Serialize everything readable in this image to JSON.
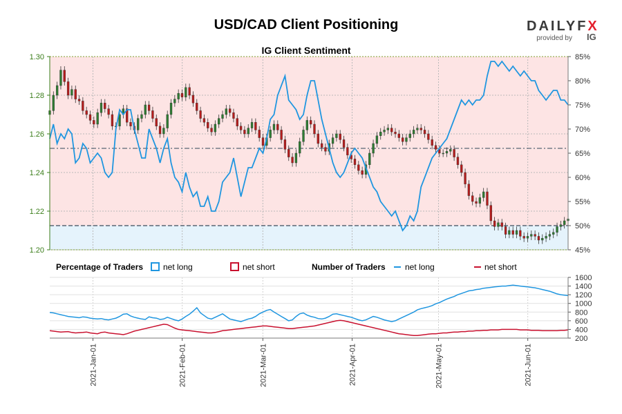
{
  "title": "USD/CAD Client Positioning",
  "logo": {
    "text": "DAILYFX",
    "provided_by": "provided by",
    "brand": "IG",
    "accent": "#e4202d"
  },
  "colors": {
    "net_long": "#1f96e0",
    "net_short": "#c8102e",
    "bull_candle": "#2e7d32",
    "bear_candle": "#b71c1c",
    "short_zone": "#fde4e4",
    "long_zone": "#e5f3fc",
    "left_axis": "#3a7d1a"
  },
  "legend": {
    "pct_label": "Percentage of Traders",
    "num_label": "Number of Traders",
    "net_long": "net long",
    "net_short": "net short"
  },
  "chart_data": [
    {
      "type": "line",
      "subtitle": "IG Client Sentiment",
      "x_dates": [
        "2021-01-01",
        "2021-02-01",
        "2021-03-01",
        "2021-04-01",
        "2021-05-01",
        "2021-06-01"
      ],
      "x_tick_labels": [
        "2021-Jan-01",
        "2021-Feb-01",
        "2021-Mar-01",
        "2021-Apr-01",
        "2021-May-01",
        "2021-Jun-01"
      ],
      "xlim": [
        "2020-12-17",
        "2021-06-15"
      ],
      "price_axis": {
        "ticks": [
          "1.20",
          "1.22",
          "1.24",
          "1.26",
          "1.28",
          "1.30"
        ],
        "ylim": [
          1.2,
          1.3
        ]
      },
      "pct_axis": {
        "ticks": [
          "45%",
          "50%",
          "55%",
          "60%",
          "65%",
          "70%",
          "75%",
          "80%",
          "85%"
        ],
        "ylim": [
          45,
          85
        ]
      },
      "reference_lines": [
        {
          "axis": "percent",
          "value": 50
        },
        {
          "axis": "percent",
          "value": 66
        }
      ],
      "series": [
        {
          "name": "net long",
          "axis": "percent",
          "start": "2020-12-17",
          "end": "2021-06-15",
          "values": [
            68,
            71,
            67,
            69,
            68,
            70,
            69,
            63,
            64,
            67,
            66,
            63,
            64,
            65,
            64,
            61,
            60,
            61,
            70,
            74,
            73,
            74,
            74,
            70,
            67,
            64,
            64,
            70,
            68,
            66,
            63,
            66,
            68,
            63,
            60,
            59,
            57,
            61,
            58,
            56,
            57,
            54,
            54,
            56,
            53,
            53,
            55,
            59,
            60,
            61,
            64,
            60,
            56,
            59,
            62,
            62,
            64,
            66,
            65,
            68,
            72,
            73,
            77,
            79,
            81,
            76,
            75,
            74,
            72,
            73,
            77,
            80,
            80,
            76,
            72,
            69,
            66,
            63,
            61,
            60,
            61,
            63,
            65,
            66,
            65,
            64,
            62,
            60,
            58,
            57,
            55,
            54,
            53,
            52,
            53,
            51,
            49,
            50,
            52,
            51,
            53,
            58,
            60,
            62,
            64,
            65,
            66,
            67,
            68,
            70,
            72,
            74,
            76,
            75,
            76,
            75,
            76,
            76,
            77,
            81,
            84,
            84,
            83,
            84,
            83,
            82,
            83,
            82,
            81,
            82,
            81,
            80,
            80,
            78,
            77,
            76,
            77,
            78,
            78,
            76,
            76,
            75
          ]
        },
        {
          "name": "net long traders",
          "axis": "traders",
          "start": "2020-12-17",
          "end": "2021-06-15",
          "values": [
            790,
            780,
            760,
            740,
            720,
            700,
            690,
            680,
            670,
            690,
            680,
            660,
            650,
            640,
            650,
            630,
            620,
            640,
            660,
            700,
            750,
            760,
            710,
            680,
            660,
            640,
            630,
            690,
            670,
            660,
            630,
            640,
            680,
            650,
            620,
            600,
            640,
            700,
            750,
            820,
            900,
            780,
            720,
            660,
            640,
            680,
            720,
            760,
            700,
            640,
            620,
            600,
            580,
            610,
            640,
            660,
            700,
            760,
            800,
            840,
            860,
            800,
            750,
            700,
            650,
            600,
            620,
            700,
            760,
            780,
            730,
            700,
            680,
            650,
            640,
            660,
            700,
            750,
            760,
            740,
            720,
            700,
            680,
            650,
            620,
            600,
            620,
            660,
            700,
            680,
            650,
            620,
            600,
            580,
            600,
            640,
            680,
            720,
            760,
            800,
            850,
            880,
            900,
            920,
            950,
            990,
            1020,
            1060,
            1100,
            1130,
            1160,
            1200,
            1230,
            1260,
            1290,
            1300,
            1320,
            1330,
            1350,
            1360,
            1370,
            1380,
            1390,
            1400,
            1400,
            1410,
            1420,
            1410,
            1400,
            1390,
            1380,
            1370,
            1360,
            1340,
            1320,
            1300,
            1280,
            1250,
            1220,
            1200,
            1190,
            1180
          ]
        },
        {
          "name": "net short traders",
          "axis": "traders",
          "start": "2020-12-17",
          "end": "2021-06-15",
          "values": [
            370,
            360,
            350,
            340,
            345,
            350,
            330,
            320,
            325,
            330,
            340,
            320,
            310,
            300,
            330,
            340,
            320,
            310,
            300,
            290,
            280,
            300,
            330,
            360,
            380,
            400,
            420,
            440,
            460,
            480,
            500,
            520,
            510,
            470,
            430,
            400,
            390,
            380,
            370,
            360,
            350,
            340,
            330,
            320,
            320,
            330,
            350,
            370,
            380,
            390,
            400,
            410,
            420,
            430,
            440,
            450,
            460,
            470,
            480,
            480,
            470,
            460,
            450,
            440,
            430,
            420,
            420,
            430,
            440,
            450,
            460,
            470,
            480,
            500,
            520,
            540,
            560,
            580,
            600,
            610,
            600,
            580,
            560,
            540,
            520,
            500,
            480,
            460,
            440,
            420,
            400,
            380,
            360,
            340,
            320,
            300,
            290,
            280,
            270,
            260,
            260,
            270,
            280,
            290,
            300,
            300,
            310,
            320,
            320,
            330,
            340,
            340,
            350,
            350,
            360,
            360,
            370,
            370,
            380,
            380,
            390,
            390,
            390,
            400,
            400,
            400,
            400,
            400,
            390,
            390,
            390,
            380,
            380,
            380,
            370,
            370,
            370,
            370,
            370,
            380,
            380,
            390
          ]
        }
      ],
      "candles": {
        "axis": "price",
        "start": "2020-12-17",
        "end": "2021-06-15",
        "close": [
          1.272,
          1.28,
          1.285,
          1.293,
          1.287,
          1.28,
          1.283,
          1.278,
          1.277,
          1.272,
          1.27,
          1.267,
          1.265,
          1.271,
          1.276,
          1.273,
          1.27,
          1.264,
          1.264,
          1.27,
          1.273,
          1.266,
          1.264,
          1.262,
          1.268,
          1.27,
          1.275,
          1.272,
          1.268,
          1.264,
          1.26,
          1.263,
          1.27,
          1.276,
          1.278,
          1.281,
          1.279,
          1.284,
          1.28,
          1.276,
          1.272,
          1.268,
          1.266,
          1.263,
          1.261,
          1.265,
          1.268,
          1.27,
          1.273,
          1.271,
          1.268,
          1.264,
          1.262,
          1.26,
          1.263,
          1.266,
          1.262,
          1.258,
          1.254,
          1.258,
          1.262,
          1.265,
          1.262,
          1.257,
          1.252,
          1.248,
          1.245,
          1.25,
          1.256,
          1.262,
          1.267,
          1.265,
          1.26,
          1.255,
          1.253,
          1.251,
          1.255,
          1.258,
          1.26,
          1.257,
          1.253,
          1.249,
          1.247,
          1.244,
          1.241,
          1.239,
          1.244,
          1.25,
          1.255,
          1.259,
          1.261,
          1.262,
          1.263,
          1.261,
          1.26,
          1.258,
          1.256,
          1.258,
          1.26,
          1.262,
          1.263,
          1.262,
          1.26,
          1.257,
          1.254,
          1.252,
          1.25,
          1.25,
          1.251,
          1.252,
          1.248,
          1.244,
          1.24,
          1.234,
          1.228,
          1.225,
          1.224,
          1.227,
          1.23,
          1.223,
          1.215,
          1.212,
          1.214,
          1.212,
          1.208,
          1.21,
          1.208,
          1.21,
          1.207,
          1.206,
          1.207,
          1.208,
          1.207,
          1.205,
          1.206,
          1.207,
          1.208,
          1.209,
          1.212,
          1.213,
          1.215,
          1.216
        ]
      }
    }
  ]
}
